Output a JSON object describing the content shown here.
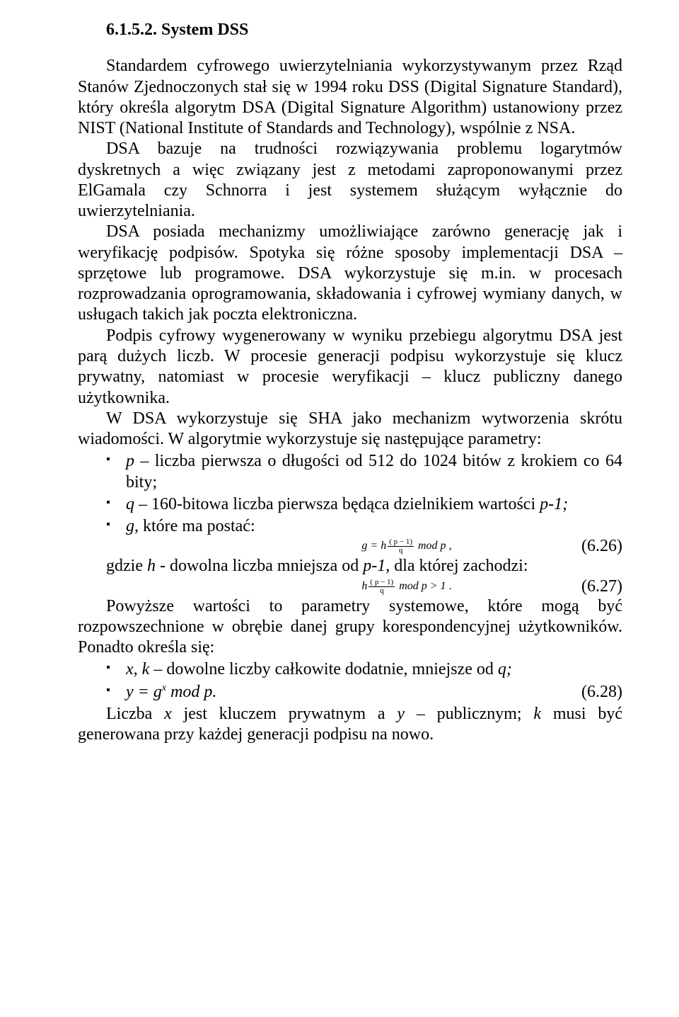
{
  "heading": "6.1.5.2.   System DSS",
  "p1": "Standardem cyfrowego uwierzytelniania wykorzystywanym przez Rząd Stanów Zjednoczonych stał się w 1994 roku DSS (Digital Signature Standard), który określa algorytm DSA (Digital Signature Algorithm) ustanowiony przez NIST (National Institute of Standards and Technology), wspólnie z NSA.",
  "p2": "DSA bazuje na trudności rozwiązywania problemu logarytmów dyskretnych a więc związany jest z metodami zaproponowanymi przez ElGamala czy Schnorra i jest systemem służącym wyłącznie do uwierzytelniania.",
  "p3": "DSA posiada mechanizmy umożliwiające zarówno generację jak i weryfikację podpisów. Spotyka się różne sposoby implementacji DSA – sprzętowe lub programowe. DSA wykorzystuje się m.in. w procesach rozprowadzania oprogramowania, składowania i cyfrowej wymiany danych, w usługach takich jak poczta elektroniczna.",
  "p4": "Podpis cyfrowy wygenerowany w wyniku przebiegu algorytmu DSA jest parą dużych liczb. W procesie generacji podpisu wykorzystuje się klucz prywatny, natomiast w procesie weryfikacji – klucz publiczny danego użytkownika.",
  "p5": "W DSA wykorzystuje się SHA jako mechanizm wytworzenia skrótu wiadomości. W algorytmie wykorzystuje się następujące parametry:",
  "b1a": "p",
  "b1b": " – liczba pierwsza o długości od 512 do 1024 bitów z krokiem co 64 bity;",
  "b2a": "q",
  "b2b": " – 160-bitowa liczba pierwsza będąca dzielnikiem wartości ",
  "b2c": "p-1;",
  "b3a": "g",
  "b3b": ", które ma postać:",
  "eq626_lhs": "g = h",
  "eq626_rhs": " mod p",
  "eq626_suffix": " ,",
  "eq626_num": "(6.26)",
  "eq626_exp_top": "( p − 1)",
  "eq626_exp_bot": "q",
  "p6a": "gdzie ",
  "p6b": "h",
  "p6c": " - dowolna liczba mniejsza od ",
  "p6d": "p-1",
  "p6e": ", dla której zachodzi:",
  "eq627_lhs": "h",
  "eq627_rhs": " mod p > 1",
  "eq627_suffix": " .",
  "eq627_num": "(6.27)",
  "eq627_exp_top": "( p − 1)",
  "eq627_exp_bot": "q",
  "p7": "Powyższe wartości to parametry systemowe, które mogą być rozpowszechnione w obrębie danej grupy korespondencyjnej użytkowników. Ponadto określa się:",
  "b4a": " x, k",
  "b4b": " – dowolne liczby całkowite dodatnie, mniejsze od ",
  "b4c": "q;",
  "b5a": "y = g",
  "b5b": "x",
  "b5c": " mod p.",
  "eq628_num": "(6.28)",
  "p8a": "Liczba ",
  "p8b": "x",
  "p8c": " jest kluczem prywatnym a ",
  "p8d": "y",
  "p8e": " – publicznym; ",
  "p8f": "k",
  "p8g": " musi być generowana przy każdej generacji podpisu na nowo."
}
